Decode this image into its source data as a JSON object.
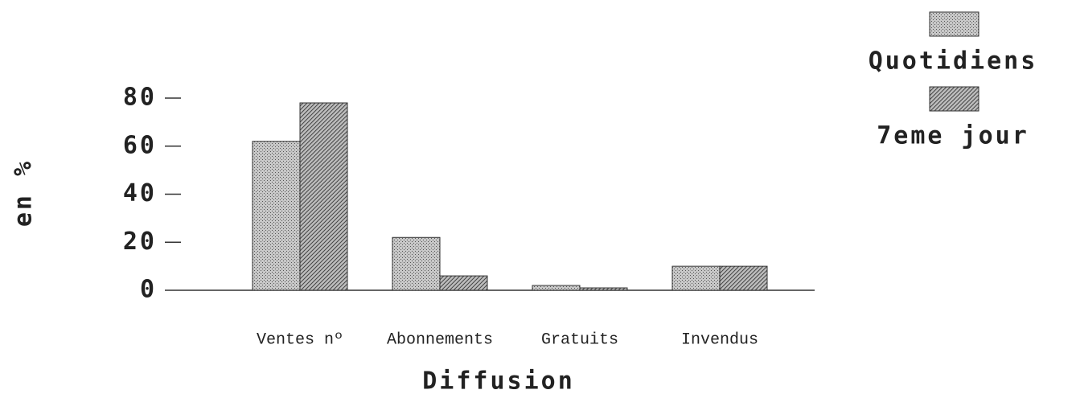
{
  "chart_data": {
    "type": "bar",
    "x_label": "Diffusion",
    "y_label": "en %",
    "categories": [
      "Ventes nº",
      "Abonnements",
      "Gratuits",
      "Invendus"
    ],
    "series": [
      {
        "name": "Quotidiens",
        "color": "#c8c8c8",
        "values": [
          62,
          22,
          2,
          10
        ]
      },
      {
        "name": "7eme jour",
        "color": "#bdbdbd",
        "values": [
          78,
          6,
          1,
          10
        ]
      }
    ],
    "ylim": [
      0,
      80
    ],
    "yticks": [
      0,
      20,
      40,
      60,
      80
    ]
  }
}
